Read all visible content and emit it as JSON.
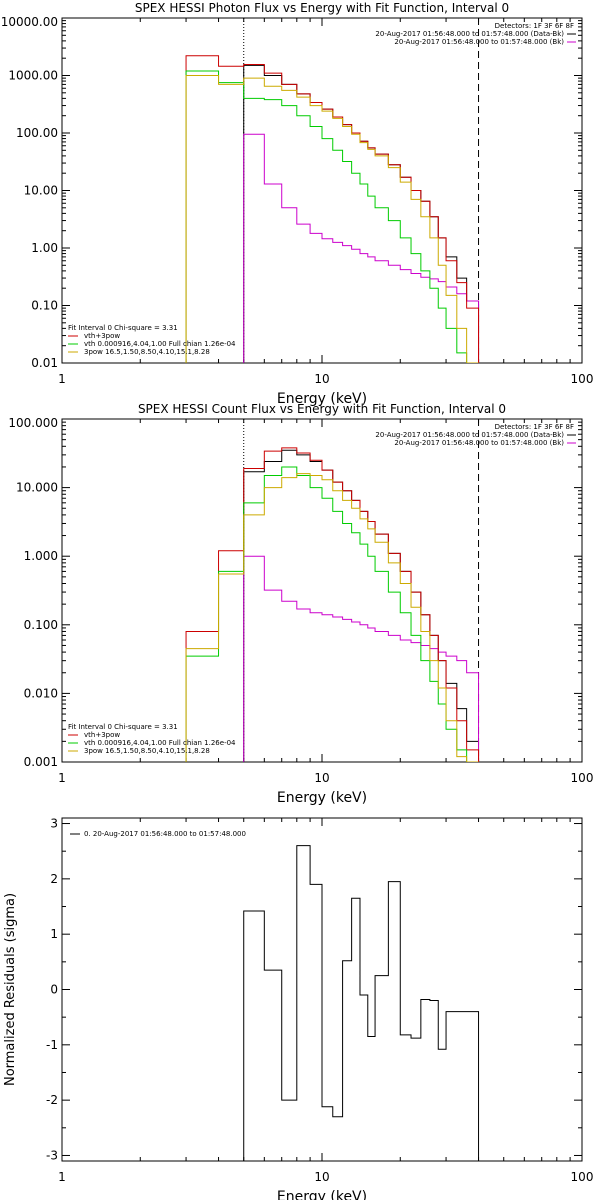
{
  "chart_data": [
    {
      "type": "line",
      "title": "SPEX HESSI Photon Flux vs Energy with Fit Function, Interval 0",
      "xlabel": "Energy (keV)",
      "ylabel": "",
      "xscale": "log",
      "yscale": "log",
      "xlim": [
        1,
        100
      ],
      "ylim": [
        0.01,
        10000
      ],
      "xticks": [
        {
          "v": 1,
          "label": "1"
        },
        {
          "v": 10,
          "label": "10"
        },
        {
          "v": 100,
          "label": "100"
        }
      ],
      "yticks": [
        {
          "v": 0.01,
          "label": "0.01"
        },
        {
          "v": 0.1,
          "label": "0.10"
        },
        {
          "v": 1,
          "label": "1.00"
        },
        {
          "v": 10,
          "label": "10.00"
        },
        {
          "v": 100,
          "label": "100.00"
        },
        {
          "v": 1000,
          "label": "1000.00"
        },
        {
          "v": 10000,
          "label": "10000.00"
        }
      ],
      "vlines": [
        {
          "x": 5.0,
          "style": "dotted"
        },
        {
          "x": 40.0,
          "style": "dashed"
        }
      ],
      "top_legend": {
        "header": "Detectors: 1F 3F 6F 8F",
        "lines": [
          {
            "text": "20-Aug-2017 01:56:48.000 to 01:57:48.000 (Data-Bk)",
            "color": "#000000"
          },
          {
            "text": "20-Aug-2017 01:56:48.000 to 01:57:48.000 (Bk)",
            "color": "#cc00cc"
          }
        ]
      },
      "fit_legend": {
        "header": "Fit Interval 0   Chi-square = 3.31",
        "lines": [
          {
            "text": "vth+3pow",
            "color": "#cc0000"
          },
          {
            "text": "vth 0.000916,4.04,1.00   Full chian 1.26e-04",
            "color": "#00cc00"
          },
          {
            "text": "3pow 16.5,1.50,8.50,4.10,15.1,8.28",
            "color": "#ccaa00"
          }
        ]
      },
      "edges": [
        3.0,
        4.0,
        5.0,
        6.0,
        7.0,
        8.0,
        9.0,
        10.0,
        11.0,
        12.0,
        13.0,
        14.0,
        15.0,
        16.0,
        18.0,
        20.0,
        22.0,
        24.0,
        26.0,
        28.0,
        30.0,
        33.0,
        36.0,
        40.0
      ],
      "series": [
        {
          "color": "#000000",
          "start": 2,
          "values": [
            1500,
            1000,
            700,
            480,
            340,
            260,
            190,
            140,
            100,
            72,
            55,
            43,
            28,
            17,
            10,
            6.5,
            3.5,
            1.5,
            0.7,
            0.3,
            0.12
          ]
        },
        {
          "color": "#cc00cc",
          "start": 2,
          "values": [
            95,
            13,
            5.0,
            2.6,
            1.8,
            1.45,
            1.25,
            1.1,
            0.95,
            0.8,
            0.7,
            0.6,
            0.5,
            0.42,
            0.36,
            0.31,
            0.29,
            0.26,
            0.21,
            0.16,
            0.12
          ]
        },
        {
          "color": "#cc0000",
          "start": 0,
          "values": [
            2200,
            1450,
            1550,
            1100,
            700,
            480,
            340,
            260,
            190,
            140,
            100,
            72,
            55,
            43,
            28,
            17,
            10,
            6.5,
            3.5,
            1.5,
            0.6,
            0.25,
            0.09
          ]
        },
        {
          "color": "#00cc00",
          "start": 0,
          "values": [
            1200,
            750,
            400,
            380,
            300,
            200,
            130,
            80,
            50,
            32,
            20,
            13,
            8,
            5,
            3,
            1.5,
            0.8,
            0.4,
            0.2,
            0.09,
            0.04,
            0.015,
            0.006
          ]
        },
        {
          "color": "#ccaa00",
          "start": 0,
          "values": [
            1000,
            700,
            900,
            650,
            550,
            420,
            300,
            240,
            180,
            130,
            95,
            68,
            52,
            40,
            25,
            14,
            7,
            3.5,
            1.5,
            0.5,
            0.15,
            0.04,
            0.008
          ]
        }
      ]
    },
    {
      "type": "line",
      "title": "SPEX HESSI Count Flux vs Energy with Fit Function, Interval 0",
      "xlabel": "Energy (keV)",
      "ylabel": "",
      "xscale": "log",
      "yscale": "log",
      "xlim": [
        1,
        100
      ],
      "ylim": [
        0.001,
        100
      ],
      "xticks": [
        {
          "v": 1,
          "label": "1"
        },
        {
          "v": 10,
          "label": "10"
        },
        {
          "v": 100,
          "label": "100"
        }
      ],
      "yticks": [
        {
          "v": 0.001,
          "label": "0.001"
        },
        {
          "v": 0.01,
          "label": "0.010"
        },
        {
          "v": 0.1,
          "label": "0.100"
        },
        {
          "v": 1,
          "label": "1.000"
        },
        {
          "v": 10,
          "label": "10.000"
        },
        {
          "v": 100,
          "label": "100.000"
        }
      ],
      "vlines": [
        {
          "x": 5.0,
          "style": "dotted"
        },
        {
          "x": 40.0,
          "style": "dashed"
        }
      ],
      "top_legend": {
        "header": "Detectors: 1F 3F 6F 8F",
        "lines": [
          {
            "text": "20-Aug-2017 01:56:48.000 to 01:57:48.000 (Data-Bk)",
            "color": "#000000"
          },
          {
            "text": "20-Aug-2017 01:56:48.000 to 01:57:48.000 (Bk)",
            "color": "#cc00cc"
          }
        ]
      },
      "fit_legend": {
        "header": "Fit Interval 0   Chi-square = 3.31",
        "lines": [
          {
            "text": "vth+3pow",
            "color": "#cc0000"
          },
          {
            "text": "vth 0.000916,4.04,1.00   Full chian 1.26e-04",
            "color": "#00cc00"
          },
          {
            "text": "3pow 16.5,1.50,8.50,4.10,15.1,8.28",
            "color": "#ccaa00"
          }
        ]
      },
      "edges": [
        3.0,
        4.0,
        5.0,
        6.0,
        7.0,
        8.0,
        9.0,
        10.0,
        11.0,
        12.0,
        13.0,
        14.0,
        15.0,
        16.0,
        18.0,
        20.0,
        22.0,
        24.0,
        26.0,
        28.0,
        30.0,
        33.0,
        36.0,
        40.0
      ],
      "series": [
        {
          "color": "#000000",
          "start": 2,
          "values": [
            17,
            24,
            35,
            30,
            24,
            18,
            12,
            9,
            6.5,
            4.5,
            3.2,
            2.1,
            1.1,
            0.6,
            0.3,
            0.14,
            0.07,
            0.03,
            0.014,
            0.006,
            0.002
          ]
        },
        {
          "color": "#cc00cc",
          "start": 2,
          "values": [
            1.0,
            0.32,
            0.22,
            0.17,
            0.15,
            0.14,
            0.13,
            0.12,
            0.11,
            0.1,
            0.09,
            0.08,
            0.07,
            0.06,
            0.055,
            0.05,
            0.045,
            0.04,
            0.035,
            0.03,
            0.02
          ]
        },
        {
          "color": "#cc0000",
          "start": 0,
          "values": [
            0.08,
            1.2,
            19,
            34,
            38,
            32,
            25,
            18,
            12,
            9,
            6.5,
            4.5,
            3.2,
            2.1,
            1.1,
            0.6,
            0.3,
            0.14,
            0.07,
            0.03,
            0.012,
            0.004,
            0.0015
          ]
        },
        {
          "color": "#00cc00",
          "start": 0,
          "values": [
            0.035,
            0.6,
            6,
            15,
            20,
            15,
            10,
            7,
            4.5,
            3,
            2.2,
            1.5,
            1.0,
            0.6,
            0.3,
            0.15,
            0.07,
            0.03,
            0.015,
            0.007,
            0.003,
            0.0015,
            0.0008
          ]
        },
        {
          "color": "#ccaa00",
          "start": 0,
          "values": [
            0.045,
            0.55,
            4,
            10,
            14,
            16,
            15,
            13,
            9,
            6.5,
            5,
            3.5,
            2.5,
            1.6,
            0.8,
            0.4,
            0.18,
            0.08,
            0.03,
            0.012,
            0.004,
            0.0012,
            0.0004
          ]
        }
      ]
    },
    {
      "type": "line",
      "title": "",
      "xlabel": "Energy (keV)",
      "ylabel": "Normalized Residuals (sigma)",
      "xscale": "log",
      "yscale": "linear",
      "xlim": [
        1,
        100
      ],
      "ylim": [
        -3.1,
        3.1
      ],
      "xticks": [
        {
          "v": 1,
          "label": "1"
        },
        {
          "v": 10,
          "label": "10"
        },
        {
          "v": 100,
          "label": "100"
        }
      ],
      "yticks": [
        {
          "v": -3,
          "label": "-3"
        },
        {
          "v": -2,
          "label": "-2"
        },
        {
          "v": -1,
          "label": "-1"
        },
        {
          "v": 0,
          "label": "0"
        },
        {
          "v": 1,
          "label": "1"
        },
        {
          "v": 2,
          "label": "2"
        },
        {
          "v": 3,
          "label": "3"
        }
      ],
      "vlines": [],
      "top_legend": {
        "header": "",
        "lines": [
          {
            "text": "0. 20-Aug-2017 01:56:48.000 to 01:57:48.000",
            "color": "#000000"
          }
        ]
      },
      "fit_legend": {
        "header": "",
        "lines": []
      },
      "edges": [
        5.0,
        6.0,
        7.0,
        8.0,
        9.0,
        10.0,
        11.0,
        12.0,
        13.0,
        14.0,
        15.0,
        16.0,
        18.0,
        20.0,
        22.0,
        24.0,
        26.0,
        28.0,
        30.0,
        33.0,
        36.0,
        40.0
      ],
      "series": [
        {
          "color": "#000000",
          "start": 0,
          "values": [
            1.42,
            0.35,
            -2.0,
            2.6,
            1.9,
            -2.12,
            -2.3,
            0.52,
            1.65,
            -0.1,
            -0.85,
            0.25,
            1.95,
            -0.82,
            -0.88,
            -0.18,
            -0.2,
            -1.08,
            -0.4,
            -0.4,
            -0.4
          ]
        }
      ]
    }
  ]
}
